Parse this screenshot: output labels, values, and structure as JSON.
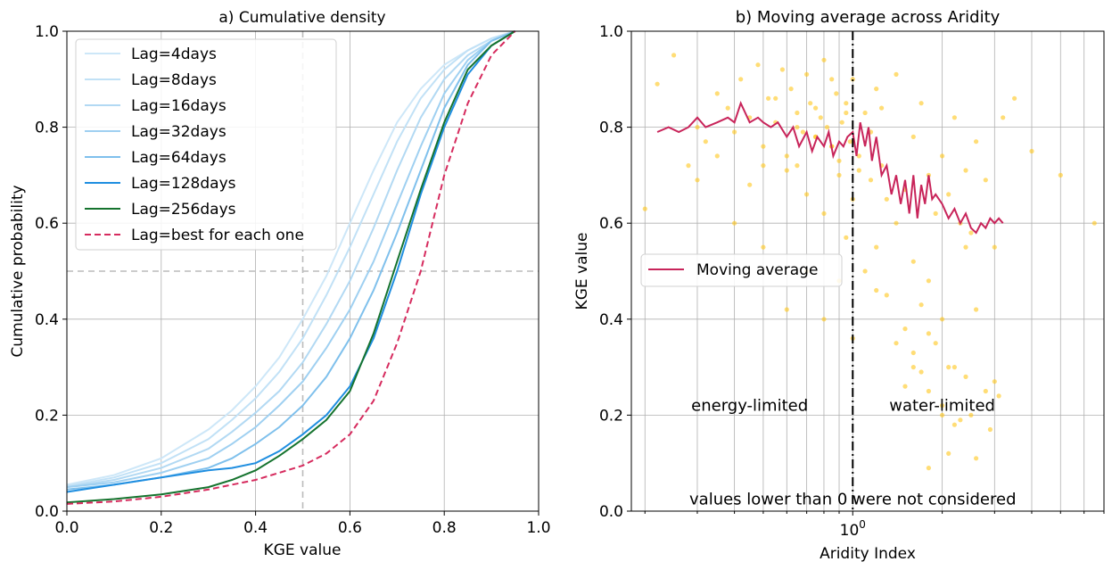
{
  "chart_data": [
    {
      "type": "line",
      "title": "a) Cumulative density",
      "xlabel": "KGE value",
      "ylabel": "Cumulative probability",
      "xlim": [
        0,
        1
      ],
      "ylim": [
        0,
        1
      ],
      "xticks": [
        "0.0",
        "0.2",
        "0.4",
        "0.6",
        "0.8",
        "1.0"
      ],
      "yticks": [
        "0.0",
        "0.2",
        "0.4",
        "0.6",
        "0.8",
        "1.0"
      ],
      "grid": true,
      "legend_position": "upper-left",
      "reference_lines": {
        "x": 0.5,
        "y": 0.5,
        "style": "dashed",
        "color": "#bbbbbb"
      },
      "series": [
        {
          "name": "Lag=4days",
          "color": "#cde7f8",
          "dashed": false,
          "x": [
            0,
            0.1,
            0.2,
            0.3,
            0.35,
            0.4,
            0.45,
            0.5,
            0.55,
            0.6,
            0.65,
            0.7,
            0.75,
            0.8,
            0.85,
            0.9,
            0.95
          ],
          "y": [
            0.055,
            0.075,
            0.11,
            0.17,
            0.21,
            0.26,
            0.32,
            0.4,
            0.49,
            0.6,
            0.71,
            0.81,
            0.88,
            0.93,
            0.96,
            0.985,
            1.0
          ]
        },
        {
          "name": "Lag=8days",
          "color": "#c1e1f6",
          "dashed": false,
          "x": [
            0,
            0.1,
            0.2,
            0.3,
            0.35,
            0.4,
            0.45,
            0.5,
            0.55,
            0.6,
            0.65,
            0.7,
            0.75,
            0.8,
            0.85,
            0.9,
            0.95
          ],
          "y": [
            0.052,
            0.07,
            0.1,
            0.15,
            0.19,
            0.235,
            0.29,
            0.36,
            0.45,
            0.55,
            0.66,
            0.77,
            0.86,
            0.92,
            0.96,
            0.985,
            1.0
          ]
        },
        {
          "name": "Lag=16days",
          "color": "#b2d9f3",
          "dashed": false,
          "x": [
            0,
            0.1,
            0.2,
            0.3,
            0.35,
            0.4,
            0.45,
            0.5,
            0.55,
            0.6,
            0.65,
            0.7,
            0.75,
            0.8,
            0.85,
            0.9,
            0.95
          ],
          "y": [
            0.05,
            0.065,
            0.09,
            0.13,
            0.165,
            0.205,
            0.25,
            0.31,
            0.39,
            0.48,
            0.59,
            0.71,
            0.82,
            0.9,
            0.95,
            0.98,
            1.0
          ]
        },
        {
          "name": "Lag=32days",
          "color": "#9fd0f1",
          "dashed": false,
          "x": [
            0,
            0.1,
            0.2,
            0.3,
            0.35,
            0.4,
            0.45,
            0.5,
            0.55,
            0.6,
            0.65,
            0.7,
            0.75,
            0.8,
            0.85,
            0.9,
            0.95
          ],
          "y": [
            0.05,
            0.06,
            0.08,
            0.11,
            0.14,
            0.175,
            0.22,
            0.27,
            0.34,
            0.42,
            0.52,
            0.64,
            0.76,
            0.87,
            0.94,
            0.98,
            1.0
          ]
        },
        {
          "name": "Lag=64days",
          "color": "#7fc0ec",
          "dashed": false,
          "x": [
            0,
            0.1,
            0.2,
            0.3,
            0.35,
            0.4,
            0.45,
            0.5,
            0.55,
            0.6,
            0.65,
            0.7,
            0.75,
            0.8,
            0.85,
            0.9,
            0.95
          ],
          "y": [
            0.045,
            0.055,
            0.07,
            0.09,
            0.11,
            0.14,
            0.175,
            0.22,
            0.28,
            0.36,
            0.46,
            0.58,
            0.71,
            0.84,
            0.93,
            0.98,
            1.0
          ]
        },
        {
          "name": "Lag=128days",
          "color": "#1f8ee0",
          "dashed": false,
          "x": [
            0,
            0.1,
            0.2,
            0.3,
            0.35,
            0.4,
            0.45,
            0.5,
            0.55,
            0.6,
            0.65,
            0.7,
            0.75,
            0.8,
            0.85,
            0.9,
            0.95
          ],
          "y": [
            0.04,
            0.055,
            0.07,
            0.085,
            0.09,
            0.1,
            0.125,
            0.16,
            0.2,
            0.26,
            0.36,
            0.5,
            0.66,
            0.8,
            0.91,
            0.97,
            1.0
          ]
        },
        {
          "name": "Lag=256days",
          "color": "#15732e",
          "dashed": false,
          "x": [
            0,
            0.1,
            0.2,
            0.3,
            0.35,
            0.4,
            0.45,
            0.5,
            0.55,
            0.6,
            0.65,
            0.7,
            0.75,
            0.8,
            0.85,
            0.9,
            0.95
          ],
          "y": [
            0.018,
            0.025,
            0.035,
            0.05,
            0.065,
            0.085,
            0.115,
            0.15,
            0.19,
            0.25,
            0.37,
            0.52,
            0.67,
            0.81,
            0.92,
            0.97,
            1.0
          ]
        },
        {
          "name": "Lag=best for each one",
          "color": "#d62b5e",
          "dashed": true,
          "x": [
            0,
            0.1,
            0.2,
            0.3,
            0.35,
            0.4,
            0.45,
            0.5,
            0.55,
            0.6,
            0.65,
            0.7,
            0.75,
            0.8,
            0.85,
            0.9,
            0.95
          ],
          "y": [
            0.015,
            0.02,
            0.03,
            0.045,
            0.055,
            0.065,
            0.08,
            0.095,
            0.12,
            0.16,
            0.23,
            0.35,
            0.5,
            0.7,
            0.85,
            0.95,
            1.0
          ]
        }
      ]
    },
    {
      "type": "scatter",
      "title": "b) Moving average across Aridity",
      "xlabel": "Aridity Index",
      "ylabel": "KGE value",
      "xscale": "log",
      "xlim": [
        0.18,
        7.0
      ],
      "ylim": [
        0,
        1
      ],
      "xtick_label": "10",
      "xtick_label_exponent": "0",
      "yticks": [
        "0.0",
        "0.2",
        "0.4",
        "0.6",
        "0.8",
        "1.0"
      ],
      "grid": true,
      "legend_position": "center-left",
      "vertical_line": {
        "x": 1.0,
        "style": "dash-dot",
        "color": "#000000"
      },
      "annotations": [
        {
          "text": "energy-limited",
          "x": 0.45,
          "y": 0.22
        },
        {
          "text": "water-limited",
          "x": 2.0,
          "y": 0.22
        },
        {
          "text": "values lower than 0 were not considered",
          "x": 1.0,
          "y": 0.025
        }
      ],
      "points": {
        "color": "#ffc61a",
        "x": [
          0.2,
          0.22,
          0.25,
          0.28,
          0.3,
          0.32,
          0.35,
          0.38,
          0.4,
          0.42,
          0.45,
          0.48,
          0.5,
          0.52,
          0.55,
          0.58,
          0.6,
          0.62,
          0.65,
          0.68,
          0.7,
          0.72,
          0.75,
          0.78,
          0.8,
          0.82,
          0.85,
          0.88,
          0.9,
          0.92,
          0.95,
          0.98,
          1.0,
          1.05,
          1.1,
          1.15,
          1.2,
          1.25,
          1.3,
          1.4,
          1.5,
          1.6,
          1.7,
          1.8,
          1.9,
          2.0,
          2.1,
          2.2,
          2.3,
          2.4,
          2.5,
          2.6,
          2.8,
          3.0,
          3.2,
          3.5,
          4.0,
          5.0,
          6.5,
          0.3,
          0.35,
          0.45,
          0.5,
          0.55,
          0.6,
          0.65,
          0.7,
          0.75,
          0.8,
          0.85,
          0.9,
          0.95,
          1.0,
          1.1,
          1.2,
          1.3,
          1.4,
          1.5,
          1.6,
          1.7,
          1.8,
          1.9,
          2.0,
          2.2,
          2.4,
          2.6,
          2.8,
          3.0,
          0.4,
          0.5,
          0.6,
          0.7,
          0.8,
          0.9,
          1.0,
          1.2,
          1.4,
          1.6,
          1.8,
          2.0,
          2.2,
          2.5,
          1.6,
          1.7,
          1.8,
          2.0,
          2.1,
          2.3,
          2.6,
          2.9,
          3.1,
          1.5,
          1.8,
          2.1,
          2.4,
          0.65,
          0.75,
          0.85,
          0.95,
          1.05,
          1.15,
          1.25
        ],
        "y": [
          0.63,
          0.89,
          0.95,
          0.72,
          0.8,
          0.77,
          0.87,
          0.84,
          0.79,
          0.9,
          0.82,
          0.93,
          0.76,
          0.86,
          0.81,
          0.92,
          0.74,
          0.88,
          0.83,
          0.79,
          0.91,
          0.85,
          0.78,
          0.82,
          0.94,
          0.8,
          0.76,
          0.87,
          0.73,
          0.81,
          0.85,
          0.77,
          0.9,
          0.74,
          0.83,
          0.69,
          0.88,
          0.72,
          0.65,
          0.91,
          0.67,
          0.78,
          0.85,
          0.7,
          0.62,
          0.74,
          0.66,
          0.82,
          0.6,
          0.71,
          0.58,
          0.77,
          0.69,
          0.55,
          0.82,
          0.86,
          0.75,
          0.7,
          0.6,
          0.69,
          0.74,
          0.68,
          0.72,
          0.86,
          0.71,
          0.8,
          0.66,
          0.84,
          0.62,
          0.9,
          0.7,
          0.57,
          0.65,
          0.5,
          0.55,
          0.45,
          0.6,
          0.38,
          0.52,
          0.43,
          0.48,
          0.35,
          0.4,
          0.3,
          0.55,
          0.42,
          0.25,
          0.27,
          0.6,
          0.55,
          0.42,
          0.5,
          0.4,
          0.48,
          0.36,
          0.46,
          0.35,
          0.3,
          0.25,
          0.2,
          0.18,
          0.2,
          0.33,
          0.29,
          0.09,
          0.22,
          0.12,
          0.19,
          0.11,
          0.17,
          0.24,
          0.26,
          0.37,
          0.3,
          0.28,
          0.72,
          0.78,
          0.76,
          0.83,
          0.71,
          0.79,
          0.84
        ]
      },
      "series": [
        {
          "name": "Moving average",
          "color": "#c8245a",
          "dashed": false,
          "x": [
            0.22,
            0.24,
            0.26,
            0.28,
            0.3,
            0.32,
            0.35,
            0.38,
            0.4,
            0.42,
            0.45,
            0.48,
            0.5,
            0.53,
            0.56,
            0.6,
            0.63,
            0.66,
            0.7,
            0.73,
            0.76,
            0.8,
            0.83,
            0.86,
            0.9,
            0.93,
            0.96,
            1.0,
            1.03,
            1.06,
            1.1,
            1.13,
            1.16,
            1.2,
            1.25,
            1.3,
            1.35,
            1.4,
            1.45,
            1.5,
            1.55,
            1.6,
            1.65,
            1.7,
            1.75,
            1.8,
            1.85,
            1.9,
            2.0,
            2.1,
            2.2,
            2.3,
            2.4,
            2.5,
            2.6,
            2.7,
            2.8,
            2.9,
            3.0,
            3.1,
            3.2
          ],
          "y": [
            0.79,
            0.8,
            0.79,
            0.8,
            0.82,
            0.8,
            0.81,
            0.82,
            0.81,
            0.85,
            0.81,
            0.82,
            0.81,
            0.8,
            0.81,
            0.78,
            0.8,
            0.76,
            0.79,
            0.75,
            0.78,
            0.76,
            0.79,
            0.74,
            0.77,
            0.76,
            0.78,
            0.79,
            0.74,
            0.81,
            0.76,
            0.8,
            0.73,
            0.78,
            0.7,
            0.72,
            0.66,
            0.7,
            0.64,
            0.69,
            0.62,
            0.7,
            0.61,
            0.68,
            0.64,
            0.7,
            0.65,
            0.66,
            0.64,
            0.61,
            0.63,
            0.6,
            0.62,
            0.59,
            0.58,
            0.6,
            0.59,
            0.61,
            0.6,
            0.61,
            0.6
          ]
        }
      ]
    }
  ]
}
